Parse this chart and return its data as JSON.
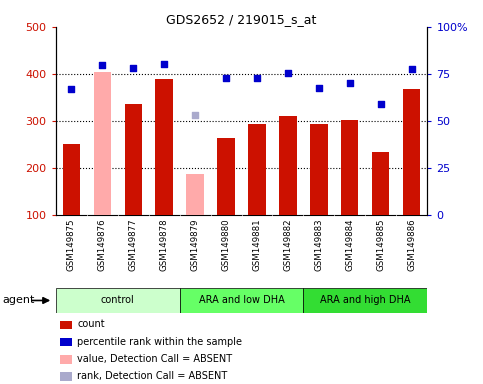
{
  "title": "GDS2652 / 219015_s_at",
  "samples": [
    "GSM149875",
    "GSM149876",
    "GSM149877",
    "GSM149878",
    "GSM149879",
    "GSM149880",
    "GSM149881",
    "GSM149882",
    "GSM149883",
    "GSM149884",
    "GSM149885",
    "GSM149886"
  ],
  "bar_values": [
    252,
    405,
    337,
    390,
    188,
    263,
    293,
    311,
    293,
    303,
    233,
    369
  ],
  "bar_absent": [
    false,
    true,
    false,
    false,
    true,
    false,
    false,
    false,
    false,
    false,
    false,
    false
  ],
  "dot_values": [
    369,
    418,
    413,
    421,
    313,
    391,
    391,
    403,
    370,
    381,
    336,
    411
  ],
  "dot_absent": [
    false,
    false,
    false,
    false,
    true,
    false,
    false,
    false,
    false,
    false,
    false,
    false
  ],
  "groups": [
    {
      "label": "control",
      "start": 0,
      "end": 3,
      "color": "#ccffcc"
    },
    {
      "label": "ARA and low DHA",
      "start": 4,
      "end": 7,
      "color": "#66ff66"
    },
    {
      "label": "ARA and high DHA",
      "start": 8,
      "end": 11,
      "color": "#33dd33"
    }
  ],
  "bar_color_normal": "#cc1100",
  "bar_color_absent": "#ffaaaa",
  "dot_color_normal": "#0000cc",
  "dot_color_absent": "#aaaacc",
  "ylim_left": [
    100,
    500
  ],
  "ylim_right": [
    0,
    100
  ],
  "yticks_left": [
    100,
    200,
    300,
    400,
    500
  ],
  "yticks_right": [
    0,
    25,
    50,
    75,
    100
  ],
  "bar_width": 0.55,
  "n_samples": 12
}
